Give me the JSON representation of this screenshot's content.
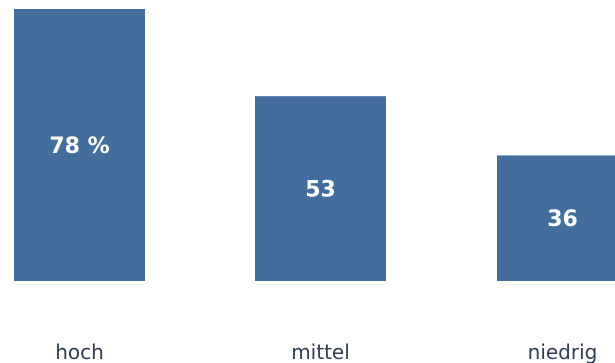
{
  "chart_data": {
    "type": "bar",
    "categories": [
      "hoch",
      "mittel",
      "niedrig"
    ],
    "values": [
      78,
      53,
      36
    ],
    "value_labels": [
      "78 %",
      "53",
      "36"
    ],
    "title": "",
    "xlabel": "",
    "ylabel": "",
    "ylim": [
      0,
      78
    ],
    "grid": false,
    "bar_color": "#426d9c"
  }
}
